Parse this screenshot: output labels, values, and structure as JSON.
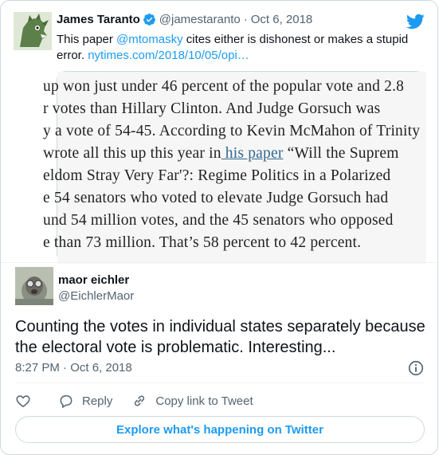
{
  "quoted_tweet": {
    "author_name": "James Taranto",
    "author_handle": "@jamestaranto",
    "separator": "·",
    "date": "Oct 6, 2018",
    "text_prefix": "This paper ",
    "mention": "@mtomasky",
    "text_middle": " cites either is dishonest or makes a stupid error. ",
    "url": "nytimes.com/2018/10/05/opi…",
    "image_lines": [
      "up won just under 46 percent of the popular vote and 2.8",
      "r votes than Hillary Clinton. And Judge Gorsuch was",
      "y a vote of 54-45. According to Kevin McMahon of Trinity",
      "wrote all this up this year in",
      "eldom Stray Very Far'?: Regime Politics in a Polarized",
      "e 54 senators who voted to elevate Judge Gorsuch had",
      "und 54 million votes, and the 45 senators who opposed",
      "e than 73 million. That’s 58 percent to 42 percent."
    ],
    "image_link": " his paper",
    "image_line4_tail": " “Will the Suprem"
  },
  "tweet": {
    "author_name": "maor eichler",
    "author_handle": "@EichlerMaor",
    "text": "Counting the votes in individual states separately because the electoral vote is problematic. Interesting...",
    "timestamp": "8:27 PM · Oct 6, 2018"
  },
  "actions": {
    "reply": "Reply",
    "copy_link": "Copy link to Tweet"
  },
  "explore_button": "Explore what's happening on Twitter",
  "colors": {
    "accent": "#1d9bf0",
    "text_secondary": "#536471",
    "border": "#cfd9de"
  }
}
